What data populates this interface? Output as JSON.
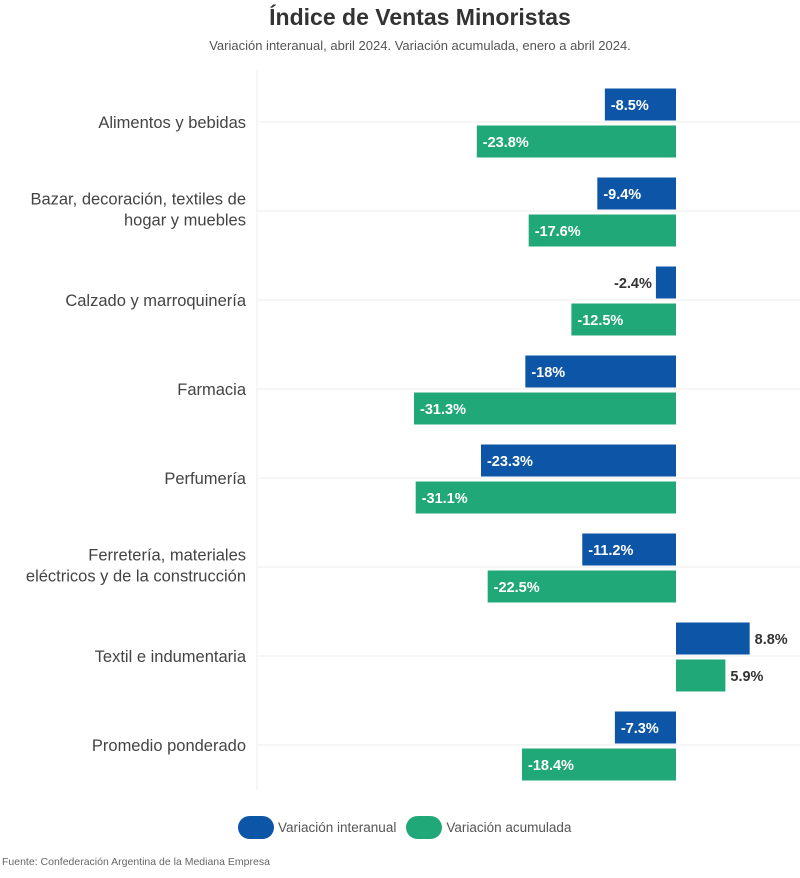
{
  "chart_data": {
    "type": "bar",
    "orientation": "horizontal",
    "title": "Índice de Ventas Minoristas",
    "subtitle": "Variación interanual, abril 2024. Variación acumulada, enero a abril 2024.",
    "categories": [
      [
        "Alimentos y bebidas"
      ],
      [
        "Bazar, decoración, textiles de",
        "hogar y muebles"
      ],
      [
        "Calzado y marroquinería"
      ],
      [
        "Farmacia"
      ],
      [
        "Perfumería"
      ],
      [
        "Ferretería, materiales",
        "eléctricos y de la construcción"
      ],
      [
        "Textil e indumentaria"
      ],
      [
        "Promedio ponderado"
      ]
    ],
    "series": [
      {
        "name": "Variación interanual",
        "color": "#0d55a6",
        "values": [
          -8.5,
          -9.4,
          -2.4,
          -18,
          -23.3,
          -11.2,
          8.8,
          -7.3
        ],
        "labels": [
          "-8.5%",
          "-9.4%",
          "-2.4%",
          "-18%",
          "-23.3%",
          "-11.2%",
          "8.8%",
          "-7.3%"
        ]
      },
      {
        "name": "Variación acumulada",
        "color": "#21a878",
        "values": [
          -23.8,
          -17.6,
          -12.5,
          -31.3,
          -31.1,
          -22.5,
          5.9,
          -18.4
        ],
        "labels": [
          "-23.8%",
          "-17.6%",
          "-12.5%",
          "-31.3%",
          "-31.1%",
          "-22.5%",
          "5.9%",
          "-18.4%"
        ]
      }
    ],
    "xlim": [
      -50,
      15
    ],
    "grid": true,
    "legend": "bottom-center",
    "xlabel": "",
    "ylabel": "",
    "source": "Fuente: Confederación Argentina de la Mediana Empresa"
  }
}
